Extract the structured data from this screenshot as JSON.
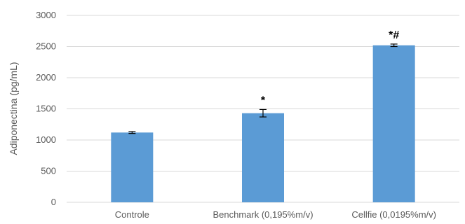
{
  "chart_data": {
    "type": "bar",
    "categories": [
      "Controle",
      "Benchmark (0,195%m/v)",
      "Cellfie (0,0195%m/v)"
    ],
    "values": [
      1120,
      1430,
      2520
    ],
    "errors": [
      15,
      60,
      20
    ],
    "annotations": [
      "",
      "*",
      "*#"
    ],
    "ylabel": "Adiponectina (pg/mL)",
    "ylim": [
      0,
      3000
    ],
    "yticks": [
      0,
      500,
      1000,
      1500,
      2000,
      2500,
      3000
    ],
    "grid": true,
    "bar_color": "#5b9bd5"
  }
}
